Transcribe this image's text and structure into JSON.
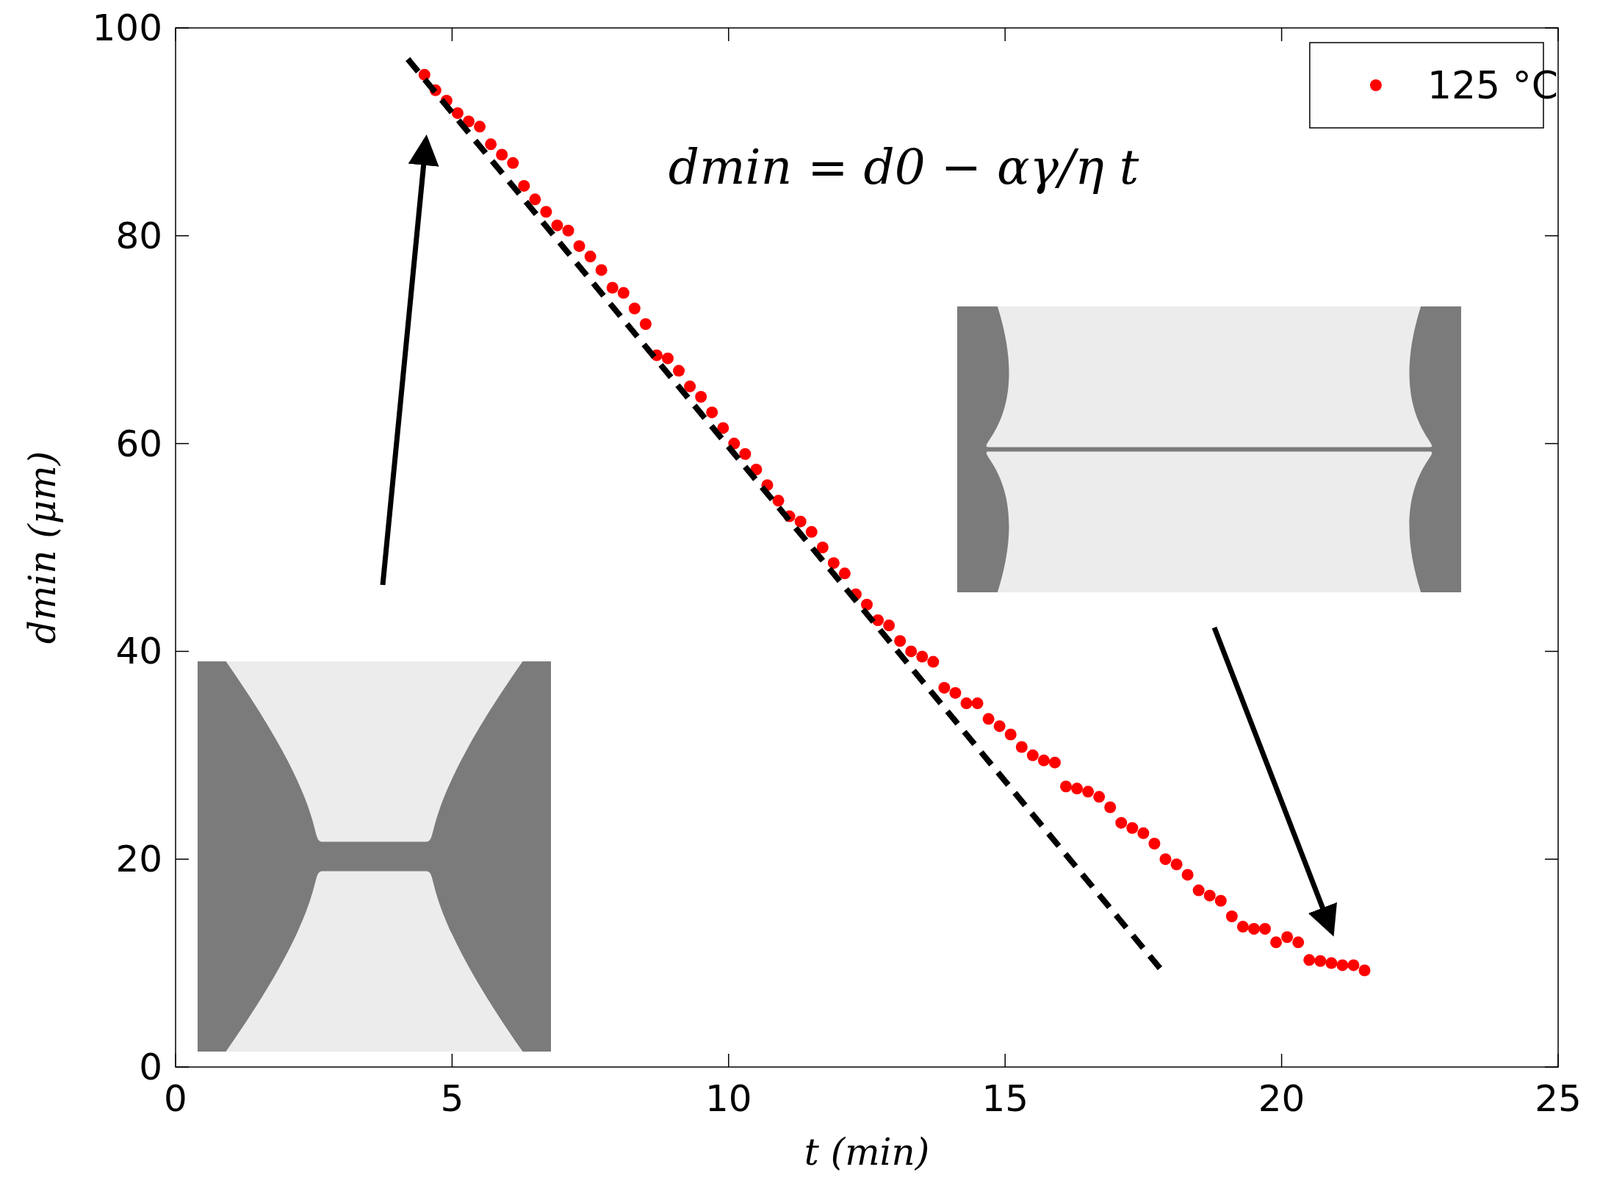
{
  "chart_data": {
    "type": "scatter",
    "x_label": "t (min)",
    "y_label": "dmin (μm)",
    "annotations": [
      {
        "text": "dmin = d0 − αγ/η t"
      }
    ],
    "xlim": [
      0,
      25
    ],
    "xticks": [
      0,
      5,
      10,
      15,
      20,
      25
    ],
    "ylim": [
      0,
      100
    ],
    "yticks": [
      0,
      20,
      40,
      60,
      80,
      100
    ],
    "grid": false,
    "legend": "upper right",
    "series": [
      {
        "name": "125 °C",
        "type": "scatter",
        "color": "#ff0000",
        "marker": "circle",
        "x": [
          4.5,
          4.7,
          4.9,
          5.1,
          5.3,
          5.5,
          5.7,
          5.9,
          6.1,
          6.3,
          6.5,
          6.7,
          6.9,
          7.1,
          7.3,
          7.5,
          7.7,
          7.9,
          8.1,
          8.3,
          8.5,
          8.7,
          8.9,
          9.1,
          9.3,
          9.5,
          9.7,
          9.9,
          10.1,
          10.3,
          10.5,
          10.7,
          10.9,
          11.1,
          11.3,
          11.5,
          11.7,
          11.9,
          12.1,
          12.3,
          12.5,
          12.7,
          12.9,
          13.1,
          13.3,
          13.5,
          13.7,
          13.9,
          14.1,
          14.3,
          14.5,
          14.7,
          14.9,
          15.1,
          15.3,
          15.5,
          15.7,
          15.9,
          16.1,
          16.3,
          16.5,
          16.7,
          16.9,
          17.1,
          17.3,
          17.5,
          17.7,
          17.9,
          18.1,
          18.3,
          18.5,
          18.7,
          18.9,
          19.1,
          19.3,
          19.5,
          19.7,
          19.9,
          20.1,
          20.3,
          20.5,
          20.7,
          20.9,
          21.1,
          21.3,
          21.5
        ],
        "values": [
          95.5,
          94,
          93,
          91.8,
          91,
          90.5,
          88.8,
          87.8,
          87,
          84.8,
          83.5,
          82.3,
          81,
          80.5,
          79,
          78,
          76.7,
          75,
          74.5,
          73,
          71.5,
          68.5,
          68.2,
          67,
          65.5,
          64.5,
          63,
          61.5,
          60,
          59,
          57.5,
          56,
          54.5,
          53,
          52.5,
          51.5,
          50,
          48.5,
          47.5,
          45.5,
          44.5,
          43,
          42.5,
          41,
          40,
          39.5,
          39,
          36.5,
          36,
          35,
          35,
          33.5,
          32.8,
          32,
          30.8,
          30,
          29.5,
          29.3,
          27,
          26.8,
          26.5,
          26,
          25,
          23.5,
          23,
          22.5,
          21.5,
          20,
          19.5,
          18.5,
          17,
          16.5,
          16,
          14.5,
          13.5,
          13.3,
          13.3,
          12,
          12.5,
          12,
          10.3,
          10.2,
          10,
          9.8,
          9.8,
          9.3
        ]
      },
      {
        "type": "line",
        "color": "#000000",
        "line_style": "dashed",
        "x": [
          4.2,
          17.8
        ],
        "values": [
          97,
          9.5
        ]
      }
    ]
  }
}
